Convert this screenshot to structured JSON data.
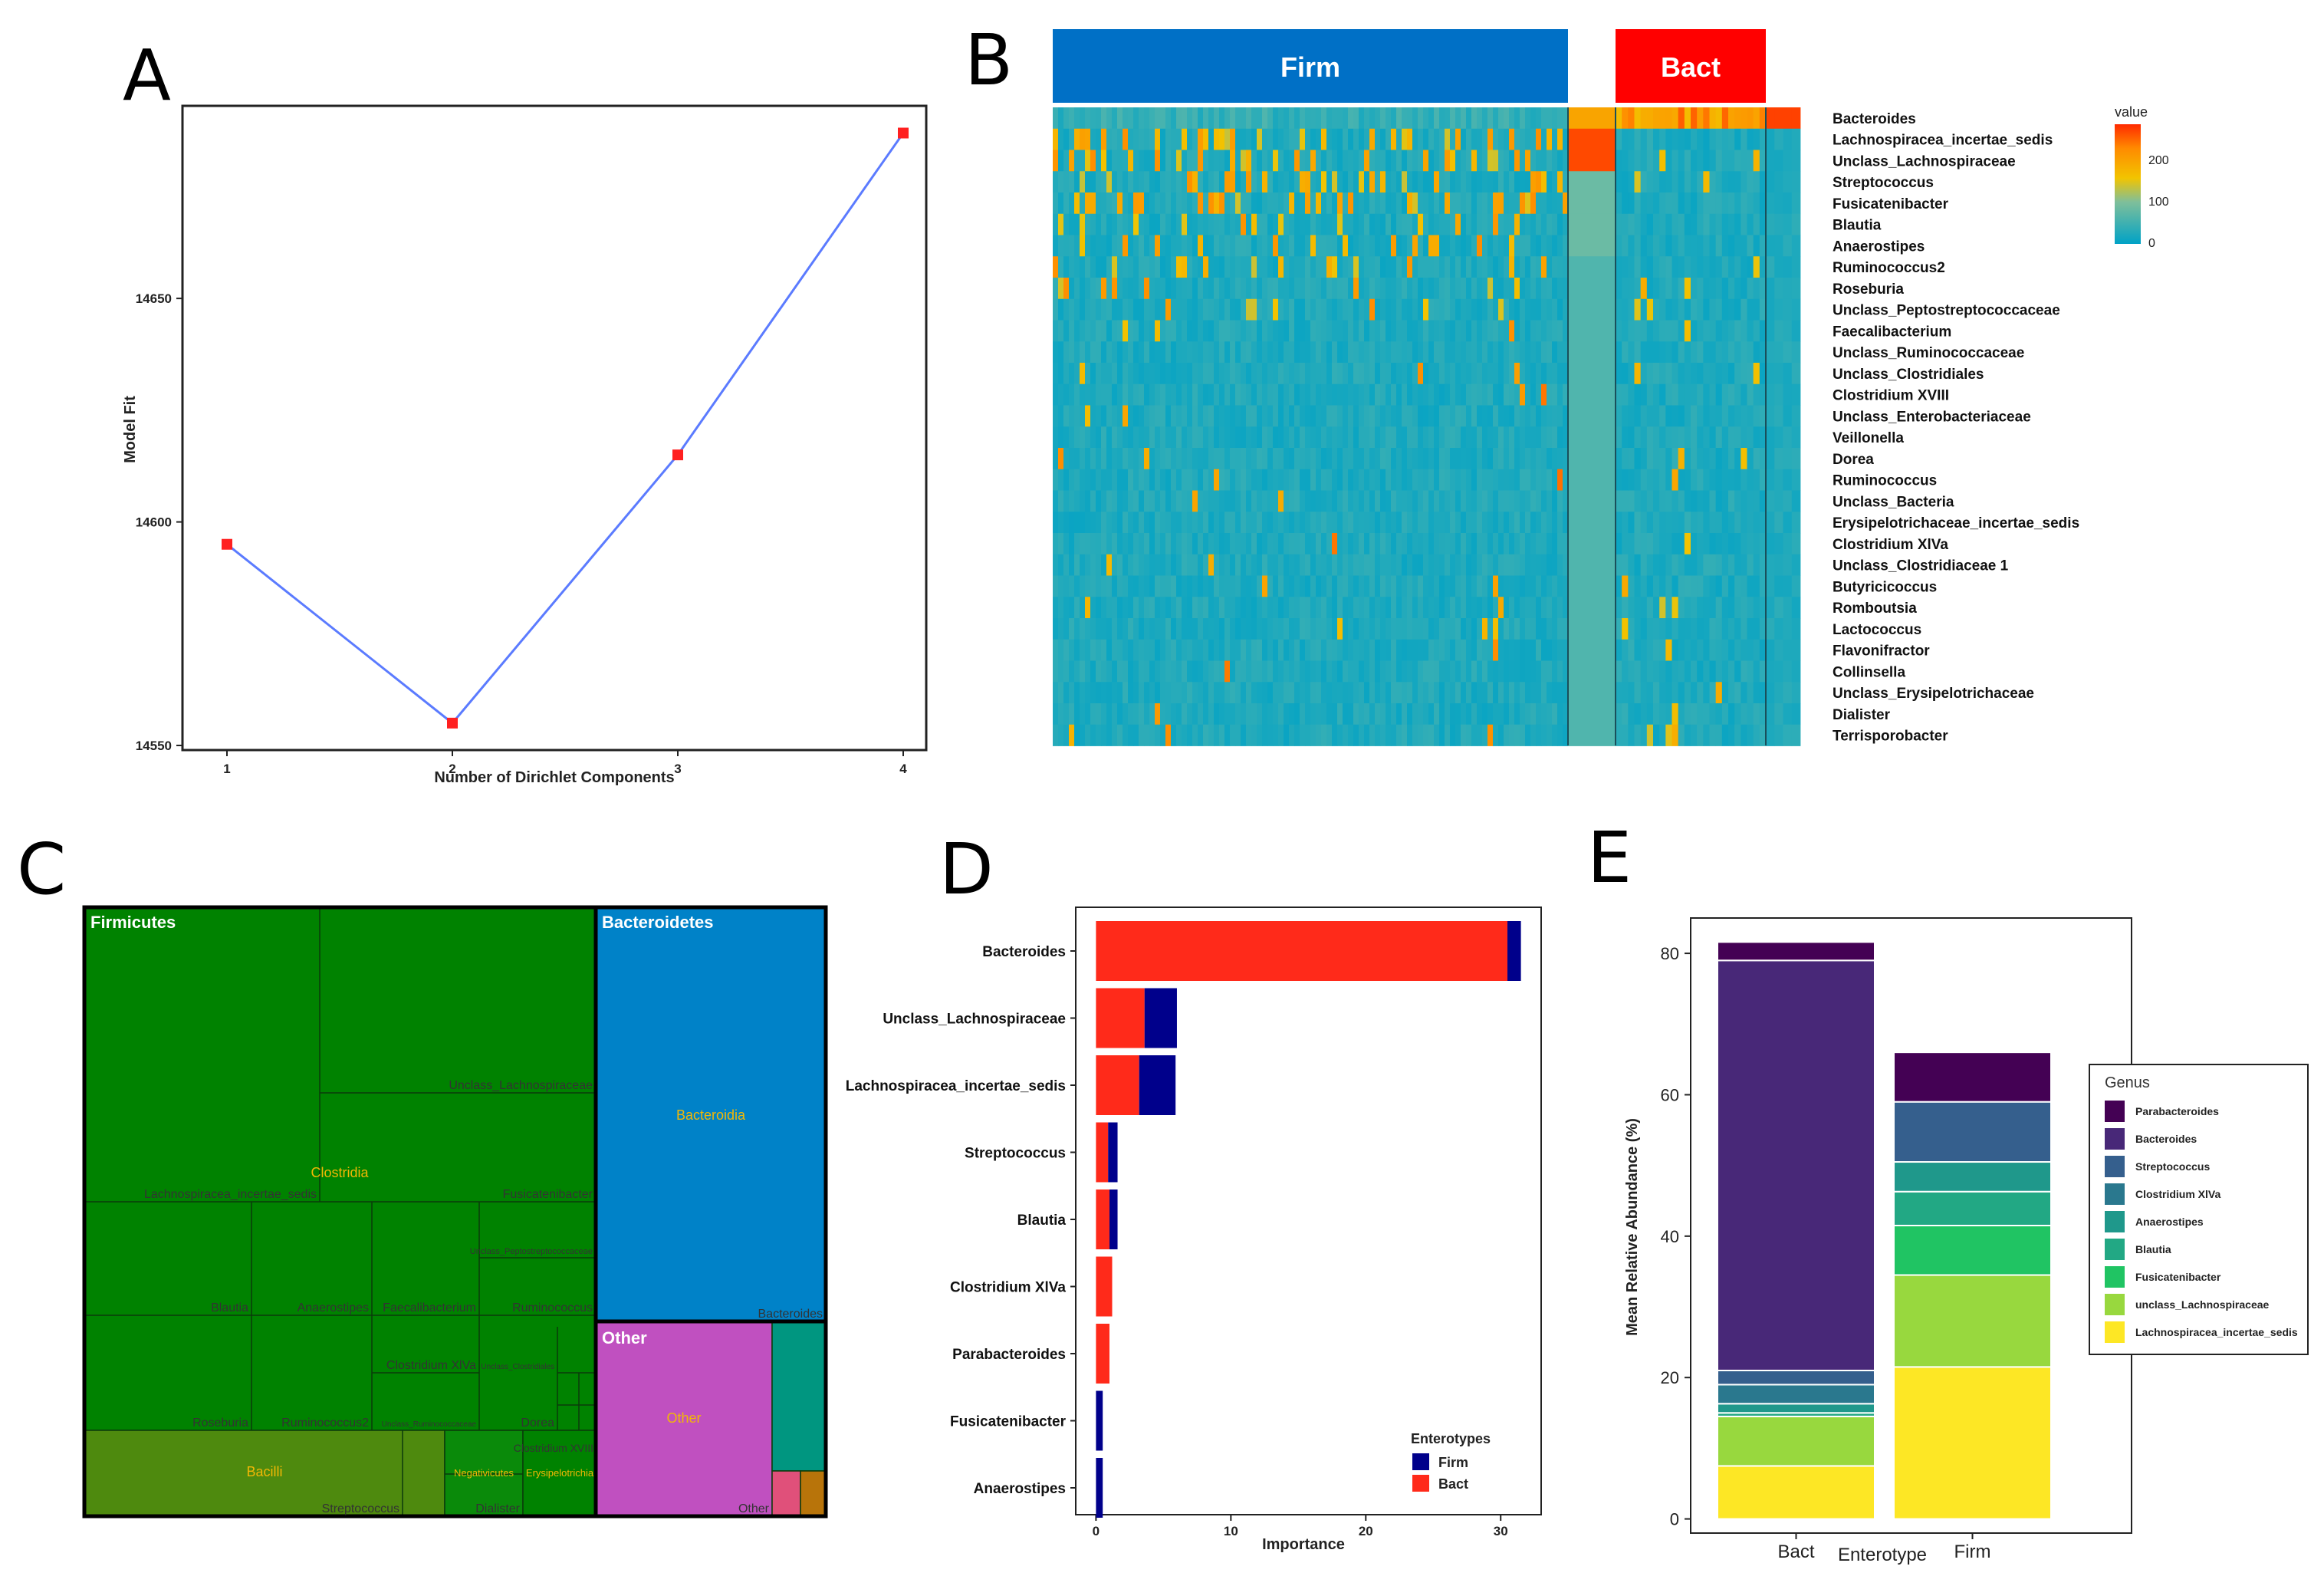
{
  "panels": {
    "a": "A",
    "b": "B",
    "c": "C",
    "d": "D",
    "e": "E"
  },
  "chart_data": [
    {
      "id": "A",
      "type": "line",
      "title": "",
      "xlabel": "Number of Dirichlet Components",
      "ylabel": "Model Fit",
      "x": [
        1,
        2,
        3,
        4
      ],
      "y": [
        14595,
        14555,
        14615,
        14687
      ],
      "xticks": [
        "1",
        "2",
        "3",
        "4"
      ],
      "yticks": [
        "14550",
        "14600",
        "14650"
      ],
      "ylim": [
        14550,
        14690
      ],
      "line_color": "#5b7bff",
      "marker_color": "#ff2020"
    },
    {
      "id": "B",
      "type": "heatmap",
      "group_labels": [
        "Firm",
        "Bact"
      ],
      "group_colors": [
        "#0070c6",
        "#ff0000"
      ],
      "rows": [
        "Bacteroides",
        "Lachnospiracea_incertae_sedis",
        "Unclass_Lachnospiraceae",
        "Streptococcus",
        "Fusicatenibacter",
        "Blautia",
        "Anaerostipes",
        "Ruminococcus2",
        "Roseburia",
        "Unclass_Peptostreptococcaceae",
        "Faecalibacterium",
        "Unclass_Ruminococcaceae",
        "Unclass_Clostridiales",
        "Clostridium XVIII",
        "Unclass_Enterobacteriaceae",
        "Veillonella",
        "Dorea",
        "Ruminococcus",
        "Unclass_Bacteria",
        "Erysipelotrichaceae_incertae_sedis",
        "Clostridium XlVa",
        "Unclass_Clostridiaceae 1",
        "Butyricicoccus",
        "Romboutsia",
        "Lactococcus",
        "Flavonifractor",
        "Collinsella",
        "Unclass_Erysipelotrichaceae",
        "Dialister",
        "Terrisporobacter"
      ],
      "legend_title": "value",
      "legend_ticks": [
        "200",
        "100",
        "0"
      ],
      "scale_range": [
        0,
        270
      ]
    },
    {
      "id": "C",
      "type": "treemap",
      "phyla": [
        "Firmicutes",
        "Bacteroidetes",
        "Other"
      ],
      "classes": [
        "Clostridia",
        "Bacilli",
        "Bacteroidia",
        "Other",
        "Negativicutes",
        "Erysipelotrichia"
      ],
      "genera": [
        "Unclass_Lachnospiraceae",
        "Lachnospiracea_incertae_sedis",
        "Fusicatenibacter",
        "Unclass_Peptostreptococcaceae",
        "Blautia",
        "Anaerostipes",
        "Faecalibacterium",
        "Ruminococcus",
        "Clostridium XlVa",
        "Unclass_Clostridiales",
        "Roseburia",
        "Ruminococcus2",
        "Unclass_Ruminococcaceae",
        "Dorea",
        "Clostridium XVIII",
        "Streptococcus",
        "Dialister",
        "Bacteroides",
        "Other"
      ]
    },
    {
      "id": "D",
      "type": "bar",
      "orientation": "horizontal",
      "stacked": true,
      "categories": [
        "Bacteroides",
        "Unclass_Lachnospiraceae",
        "Lachnospiracea_incertae_sedis",
        "Streptococcus",
        "Blautia",
        "Clostridium XlVa",
        "Parabacteroides",
        "Fusicatenibacter",
        "Anaerostipes"
      ],
      "series": [
        {
          "name": "Bact",
          "color": "#ff2a1a",
          "values": [
            30.5,
            3.6,
            3.2,
            0.9,
            1.0,
            1.2,
            1.0,
            0.0,
            0.0
          ]
        },
        {
          "name": "Firm",
          "color": "#00008b",
          "values": [
            1.0,
            2.4,
            2.7,
            0.7,
            0.6,
            0.0,
            0.0,
            0.5,
            0.5
          ]
        }
      ],
      "xlabel": "Importance",
      "xticks": [
        "0",
        "10",
        "20",
        "30"
      ],
      "xlim": [
        -1.5,
        33
      ],
      "legend_title": "Enterotypes",
      "legend_labels": [
        "Firm",
        "Bact"
      ]
    },
    {
      "id": "E",
      "type": "bar",
      "stacked": true,
      "categories": [
        "Bact",
        "Firm"
      ],
      "xlabel": "Enterotype",
      "ylabel": "Mean Relative Abundance (%)",
      "yticks": [
        "0",
        "20",
        "40",
        "60",
        "80"
      ],
      "ylim": [
        -2,
        85
      ],
      "legend_title": "Genus",
      "series": [
        {
          "name": "Lachnospiracea_incertae_sedis",
          "color": "#fde725",
          "values": [
            7.5,
            21.5
          ]
        },
        {
          "name": "unclass_Lachnospiraceae",
          "color": "#98d83e",
          "values": [
            7.0,
            13.0
          ]
        },
        {
          "name": "Fusicatenibacter",
          "color": "#20c463",
          "values": [
            0.0,
            7.0
          ]
        },
        {
          "name": "Blautia",
          "color": "#22a884",
          "values": [
            0.5,
            4.8
          ]
        },
        {
          "name": "Anaerostipes",
          "color": "#1f988b",
          "values": [
            1.3,
            4.2
          ]
        },
        {
          "name": "Clostridium XlVa",
          "color": "#2a788e",
          "values": [
            2.7,
            0.0
          ]
        },
        {
          "name": "Streptococcus",
          "color": "#355f8d",
          "values": [
            2.0,
            8.5
          ]
        },
        {
          "name": "Bacteroides",
          "color": "#482878",
          "values": [
            58.0,
            0.0
          ]
        },
        {
          "name": "Parabacteroides",
          "color": "#440154",
          "values": [
            2.6,
            7.0
          ]
        }
      ],
      "legend_order": [
        "Parabacteroides",
        "Bacteroides",
        "Streptococcus",
        "Clostridium XlVa",
        "Anaerostipes",
        "Blautia",
        "Fusicatenibacter",
        "unclass_Lachnospiraceae",
        "Lachnospiracea_incertae_sedis"
      ]
    }
  ]
}
